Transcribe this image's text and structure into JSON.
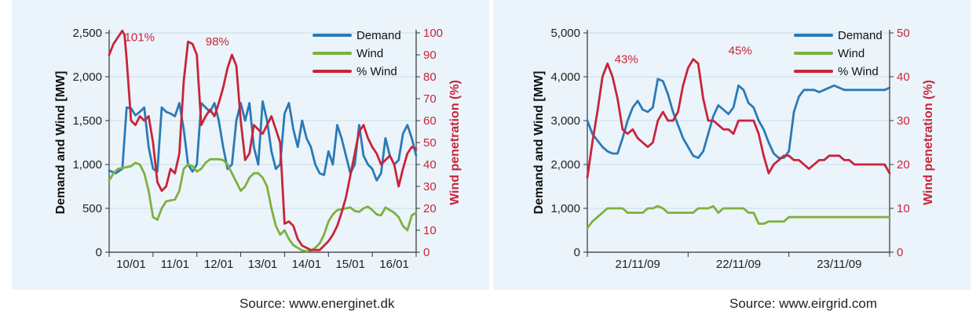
{
  "colors": {
    "demand": "#2a7ab8",
    "wind": "#7fb03f",
    "pct_wind": "#c8243a",
    "grid": "#c9dce9",
    "background": "#ebf4fa"
  },
  "chart_data": [
    {
      "type": "line",
      "source": "Source: www.energinet.dk",
      "xlabel": "",
      "ylabel": "Demand and Wind [MW]",
      "ylabel_right": "Wind penetration (%)",
      "ylim": [
        0,
        2500
      ],
      "ylim_right": [
        0,
        100
      ],
      "yticks": [
        "0",
        "500",
        "1,000",
        "1,500",
        "2,000",
        "2,500"
      ],
      "yticks_right": [
        "0",
        "10",
        "20",
        "30",
        "40",
        "50",
        "60",
        "70",
        "80",
        "90",
        "100"
      ],
      "xlim": [
        0,
        7
      ],
      "xtick_labels": [
        "10/01",
        "11/01",
        "12/01",
        "13/01",
        "14/01",
        "15/01",
        "16/01"
      ],
      "legend": [
        "Demand",
        "Wind",
        "% Wind"
      ],
      "legend_position": "top-right",
      "annotations": [
        {
          "text": "101%",
          "x": 0.35,
          "y": 98
        },
        {
          "text": "98%",
          "x": 2.2,
          "y": 96
        }
      ],
      "series": [
        {
          "name": "Demand",
          "axis": "left",
          "color_key": "demand",
          "x": [
            0,
            0.15,
            0.3,
            0.4,
            0.5,
            0.6,
            0.7,
            0.8,
            0.9,
            1.0,
            1.1,
            1.2,
            1.3,
            1.4,
            1.5,
            1.6,
            1.7,
            1.8,
            1.9,
            2.0,
            2.1,
            2.2,
            2.3,
            2.4,
            2.5,
            2.6,
            2.7,
            2.8,
            2.9,
            3.0,
            3.1,
            3.2,
            3.3,
            3.4,
            3.5,
            3.6,
            3.7,
            3.8,
            3.9,
            4.0,
            4.1,
            4.2,
            4.3,
            4.4,
            4.5,
            4.6,
            4.7,
            4.8,
            4.9,
            5.0,
            5.1,
            5.2,
            5.3,
            5.4,
            5.5,
            5.6,
            5.7,
            5.8,
            5.9,
            6.0,
            6.1,
            6.2,
            6.3,
            6.4,
            6.5,
            6.6,
            6.7,
            6.8,
            6.9,
            7.0
          ],
          "values": [
            930,
            900,
            950,
            1650,
            1640,
            1560,
            1600,
            1650,
            1200,
            950,
            920,
            1650,
            1600,
            1580,
            1550,
            1700,
            1400,
            1000,
            920,
            1000,
            1700,
            1650,
            1600,
            1700,
            1500,
            1200,
            950,
            1000,
            1500,
            1700,
            1500,
            1700,
            1200,
            1000,
            1720,
            1500,
            1150,
            950,
            1000,
            1580,
            1700,
            1400,
            1200,
            1500,
            1300,
            1200,
            1000,
            900,
            880,
            1150,
            1000,
            1450,
            1300,
            1100,
            900,
            1000,
            1450,
            1100,
            1000,
            950,
            820,
            900,
            1300,
            1100,
            1000,
            1050,
            1350,
            1450,
            1300,
            1100
          ]
        },
        {
          "name": "Wind",
          "axis": "left",
          "color_key": "wind",
          "x": [
            0,
            0.1,
            0.2,
            0.3,
            0.4,
            0.5,
            0.6,
            0.7,
            0.8,
            0.9,
            1.0,
            1.1,
            1.2,
            1.3,
            1.4,
            1.5,
            1.6,
            1.7,
            1.8,
            1.9,
            2.0,
            2.1,
            2.2,
            2.3,
            2.4,
            2.5,
            2.6,
            2.7,
            2.8,
            2.9,
            3.0,
            3.1,
            3.2,
            3.3,
            3.4,
            3.5,
            3.6,
            3.7,
            3.8,
            3.9,
            4.0,
            4.1,
            4.2,
            4.3,
            4.4,
            4.5,
            4.6,
            4.7,
            4.8,
            4.9,
            5.0,
            5.1,
            5.2,
            5.3,
            5.4,
            5.5,
            5.6,
            5.7,
            5.8,
            5.9,
            6.0,
            6.1,
            6.2,
            6.3,
            6.4,
            6.5,
            6.6,
            6.7,
            6.8,
            6.9,
            7.0
          ],
          "values": [
            820,
            900,
            950,
            960,
            970,
            980,
            1020,
            1000,
            900,
            700,
            400,
            370,
            500,
            580,
            590,
            600,
            700,
            950,
            1000,
            980,
            920,
            950,
            1020,
            1060,
            1060,
            1060,
            1050,
            1000,
            900,
            800,
            700,
            750,
            850,
            900,
            900,
            850,
            750,
            500,
            300,
            200,
            250,
            150,
            80,
            50,
            20,
            10,
            20,
            50,
            100,
            200,
            350,
            430,
            480,
            490,
            500,
            510,
            470,
            460,
            500,
            520,
            480,
            430,
            420,
            510,
            480,
            450,
            400,
            300,
            250,
            420,
            450
          ]
        },
        {
          "name": "% Wind",
          "axis": "right",
          "color_key": "pct_wind",
          "x": [
            0,
            0.1,
            0.2,
            0.3,
            0.35,
            0.4,
            0.5,
            0.6,
            0.7,
            0.8,
            0.9,
            1.0,
            1.1,
            1.2,
            1.3,
            1.4,
            1.5,
            1.6,
            1.7,
            1.8,
            1.9,
            2.0,
            2.1,
            2.2,
            2.3,
            2.4,
            2.5,
            2.6,
            2.7,
            2.8,
            2.9,
            3.0,
            3.1,
            3.2,
            3.3,
            3.4,
            3.5,
            3.6,
            3.7,
            3.8,
            3.9,
            4.0,
            4.1,
            4.2,
            4.3,
            4.4,
            4.5,
            4.6,
            4.7,
            4.8,
            4.9,
            5.0,
            5.1,
            5.2,
            5.3,
            5.4,
            5.5,
            5.6,
            5.7,
            5.8,
            5.9,
            6.0,
            6.1,
            6.2,
            6.3,
            6.4,
            6.5,
            6.6,
            6.7,
            6.8,
            6.9,
            7.0
          ],
          "values": [
            90,
            95,
            98,
            101,
            99,
            88,
            60,
            58,
            62,
            60,
            62,
            50,
            32,
            28,
            30,
            38,
            36,
            45,
            78,
            96,
            95,
            90,
            58,
            62,
            65,
            62,
            68,
            75,
            84,
            90,
            85,
            60,
            42,
            45,
            58,
            56,
            54,
            58,
            62,
            56,
            50,
            13,
            14,
            12,
            6,
            3,
            2,
            1,
            1,
            1,
            3,
            5,
            8,
            12,
            18,
            25,
            35,
            45,
            55,
            58,
            52,
            48,
            45,
            40,
            42,
            44,
            40,
            30,
            38,
            45,
            48,
            47
          ]
        }
      ]
    },
    {
      "type": "line",
      "source": "Source: www.eirgrid.com",
      "xlabel": "",
      "ylabel": "Demand and Wind [MW]",
      "ylabel_right": "Wind penetration (%)",
      "ylim": [
        0,
        5000
      ],
      "ylim_right": [
        0,
        50
      ],
      "yticks": [
        "0",
        "1,000",
        "2,000",
        "3,000",
        "4,000",
        "5,000"
      ],
      "yticks_right": [
        "0",
        "10",
        "20",
        "30",
        "40",
        "50"
      ],
      "xlim": [
        0,
        3
      ],
      "xtick_labels": [
        "21/11/09",
        "22/11/09",
        "23/11/09"
      ],
      "legend": [
        "Demand",
        "Wind",
        "% Wind"
      ],
      "legend_position": "top-right",
      "annotations": [
        {
          "text": "43%",
          "x": 0.27,
          "y": 44
        },
        {
          "text": "45%",
          "x": 1.4,
          "y": 46
        }
      ],
      "series": [
        {
          "name": "Demand",
          "axis": "left",
          "color_key": "demand",
          "x": [
            0,
            0.05,
            0.1,
            0.15,
            0.2,
            0.25,
            0.3,
            0.35,
            0.4,
            0.45,
            0.5,
            0.55,
            0.6,
            0.65,
            0.7,
            0.75,
            0.8,
            0.85,
            0.9,
            0.95,
            1.0,
            1.05,
            1.1,
            1.15,
            1.2,
            1.25,
            1.3,
            1.35,
            1.4,
            1.45,
            1.5,
            1.55,
            1.6,
            1.65,
            1.7,
            1.75,
            1.8,
            1.85,
            1.9,
            1.95,
            2.0,
            2.05,
            2.1,
            2.15,
            2.2,
            2.25,
            2.3,
            2.35,
            2.4,
            2.45,
            2.5,
            2.55,
            2.6,
            2.65,
            2.7,
            2.75,
            2.8,
            2.85,
            2.9,
            2.95,
            3.0
          ],
          "values": [
            3000,
            2700,
            2550,
            2400,
            2300,
            2250,
            2250,
            2600,
            3000,
            3300,
            3450,
            3250,
            3200,
            3300,
            3950,
            3900,
            3600,
            3200,
            2900,
            2600,
            2400,
            2200,
            2150,
            2300,
            2700,
            3100,
            3350,
            3250,
            3150,
            3300,
            3800,
            3700,
            3400,
            3300,
            3000,
            2800,
            2500,
            2250,
            2150,
            2150,
            2300,
            3200,
            3550,
            3700,
            3700,
            3700,
            3650,
            3700,
            3750,
            3800,
            3750,
            3700,
            3700,
            3700,
            3700,
            3700,
            3700,
            3700,
            3700,
            3700,
            3750
          ]
        },
        {
          "name": "Wind",
          "axis": "left",
          "color_key": "wind",
          "x": [
            0,
            0.05,
            0.1,
            0.15,
            0.2,
            0.25,
            0.3,
            0.35,
            0.4,
            0.45,
            0.5,
            0.55,
            0.6,
            0.65,
            0.7,
            0.75,
            0.8,
            0.85,
            0.9,
            0.95,
            1.0,
            1.05,
            1.1,
            1.15,
            1.2,
            1.25,
            1.3,
            1.35,
            1.4,
            1.45,
            1.5,
            1.55,
            1.6,
            1.65,
            1.7,
            1.75,
            1.8,
            1.85,
            1.9,
            1.95,
            2.0,
            2.05,
            2.1,
            2.15,
            2.2,
            2.25,
            2.3,
            2.35,
            2.4,
            2.45,
            2.5,
            2.55,
            2.6,
            2.65,
            2.7,
            2.75,
            2.8,
            2.85,
            2.9,
            2.95,
            3.0
          ],
          "values": [
            550,
            700,
            800,
            900,
            1000,
            1000,
            1000,
            1000,
            900,
            900,
            900,
            900,
            1000,
            1000,
            1050,
            1000,
            900,
            900,
            900,
            900,
            900,
            900,
            1000,
            1000,
            1000,
            1050,
            900,
            1000,
            1000,
            1000,
            1000,
            1000,
            900,
            900,
            650,
            650,
            700,
            700,
            700,
            700,
            800,
            800,
            800,
            800,
            800,
            800,
            800,
            800,
            800,
            800,
            800,
            800,
            800,
            800,
            800,
            800,
            800,
            800,
            800,
            800,
            800
          ]
        },
        {
          "name": "% Wind",
          "axis": "right",
          "color_key": "pct_wind",
          "x": [
            0,
            0.05,
            0.1,
            0.15,
            0.2,
            0.25,
            0.3,
            0.35,
            0.4,
            0.45,
            0.5,
            0.55,
            0.6,
            0.65,
            0.7,
            0.75,
            0.8,
            0.85,
            0.9,
            0.95,
            1.0,
            1.05,
            1.1,
            1.15,
            1.2,
            1.25,
            1.3,
            1.35,
            1.4,
            1.45,
            1.5,
            1.55,
            1.6,
            1.65,
            1.7,
            1.75,
            1.8,
            1.85,
            1.9,
            1.95,
            2.0,
            2.05,
            2.1,
            2.15,
            2.2,
            2.25,
            2.3,
            2.35,
            2.4,
            2.45,
            2.5,
            2.55,
            2.6,
            2.65,
            2.7,
            2.75,
            2.8,
            2.85,
            2.9,
            2.95,
            3.0
          ],
          "values": [
            17,
            25,
            32,
            40,
            43,
            40,
            35,
            28,
            27,
            28,
            26,
            25,
            24,
            25,
            30,
            32,
            30,
            30,
            32,
            38,
            42,
            44,
            43,
            35,
            30,
            30,
            29,
            28,
            28,
            27,
            30,
            30,
            30,
            30,
            27,
            22,
            18,
            20,
            21,
            22,
            22,
            21,
            21,
            20,
            19,
            20,
            21,
            21,
            22,
            22,
            22,
            21,
            21,
            20,
            20,
            20,
            20,
            20,
            20,
            20,
            18
          ]
        }
      ]
    }
  ]
}
